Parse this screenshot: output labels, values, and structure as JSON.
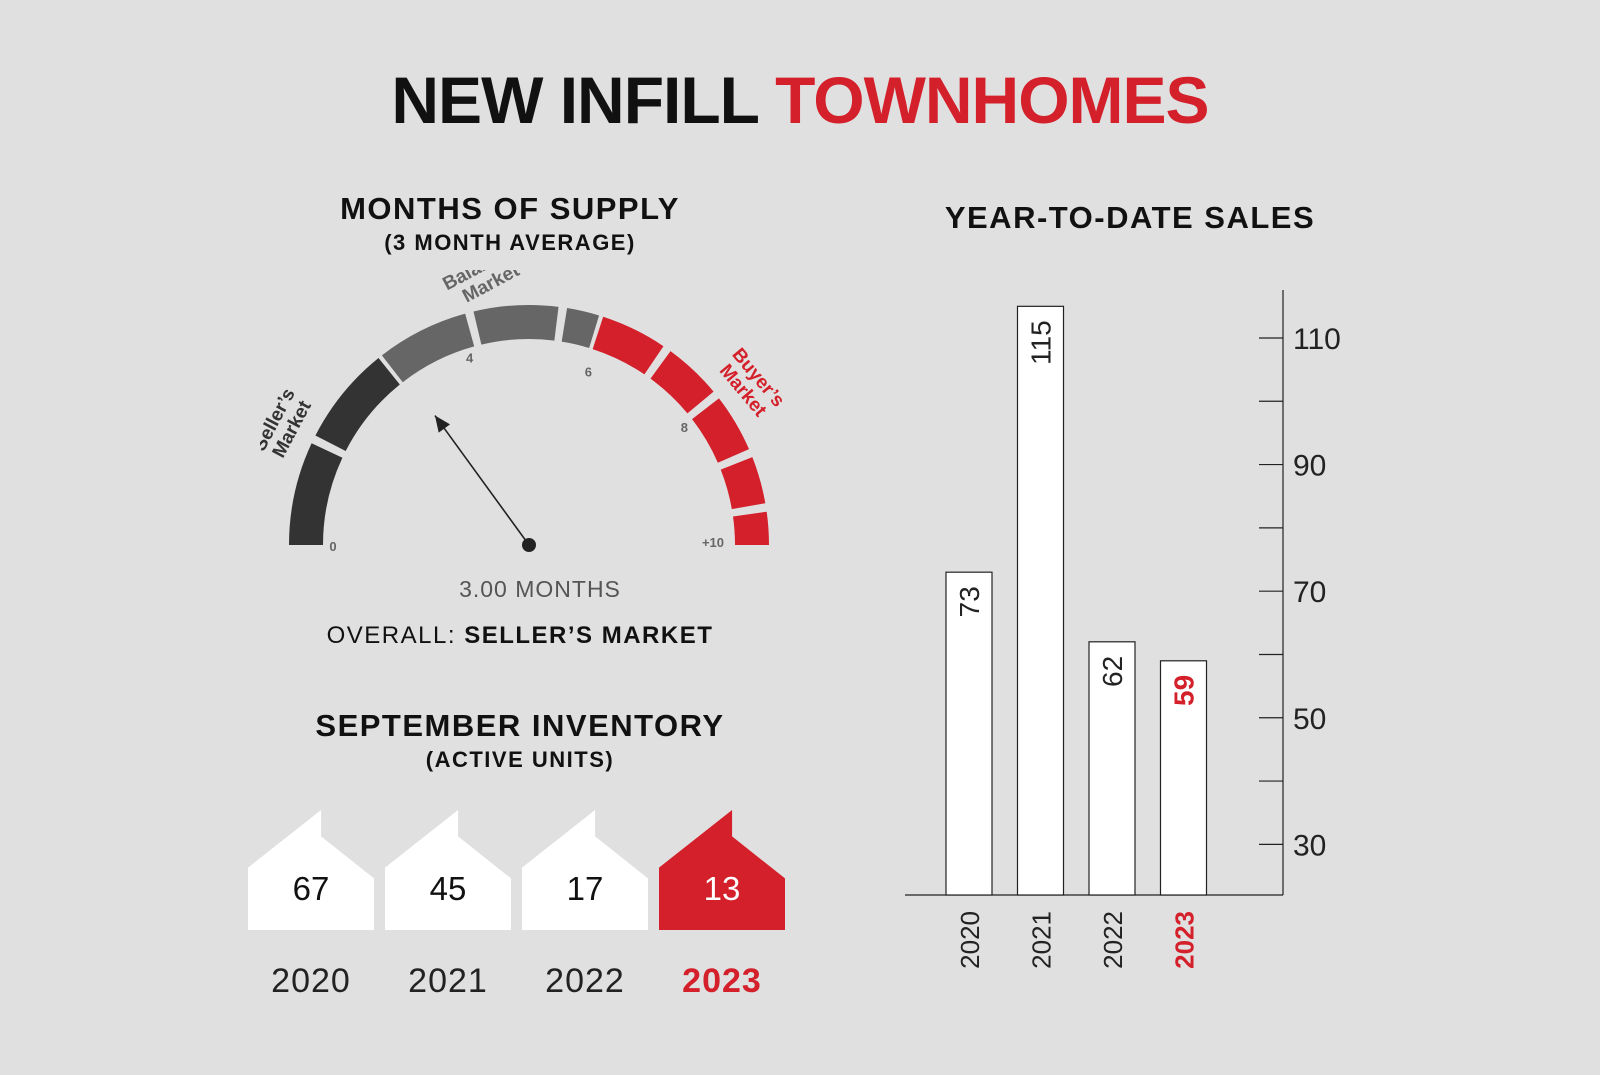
{
  "title": {
    "part1": "NEW INFILL",
    "part2": "TOWNHOMES"
  },
  "supply": {
    "title": "MONTHS OF SUPPLY",
    "subtitle": "(3 MONTH AVERAGE)",
    "value": 3.0,
    "reading": "3.00 MONTHS",
    "overall_label": "OVERALL:",
    "overall_value": "SELLER’S MARKET",
    "zones": [
      {
        "line1": "Seller’s",
        "line2": "Market",
        "color": "#333333"
      },
      {
        "line1": "Balanced",
        "line2": "Market",
        "color": "#666666"
      },
      {
        "line1": "Buyer’s",
        "line2": "Market",
        "color": "#d4202a"
      }
    ],
    "ticks": [
      {
        "value": 0,
        "label": "0"
      },
      {
        "value": 4,
        "label": "4"
      },
      {
        "value": 6,
        "label": "6"
      },
      {
        "value": 8,
        "label": "8"
      },
      {
        "value": 10,
        "label": "+10"
      }
    ]
  },
  "inventory": {
    "title": "SEPTEMBER INVENTORY",
    "subtitle": "(ACTIVE UNITS)",
    "items": [
      {
        "year": "2020",
        "value": "67",
        "highlight": false
      },
      {
        "year": "2021",
        "value": "45",
        "highlight": false
      },
      {
        "year": "2022",
        "value": "17",
        "highlight": false
      },
      {
        "year": "2023",
        "value": "13",
        "highlight": true
      }
    ]
  },
  "chart_data": {
    "type": "bar",
    "title": "YEAR-TO-DATE SALES",
    "categories": [
      "2020",
      "2021",
      "2022",
      "2023"
    ],
    "values": [
      73,
      115,
      62,
      59
    ],
    "ylim": [
      22,
      116
    ],
    "yticks": [
      30,
      50,
      70,
      90,
      110
    ],
    "minor_ticks": [
      40,
      60,
      80,
      100
    ],
    "highlight_color": "#d4202a",
    "highlight_index": 3
  }
}
